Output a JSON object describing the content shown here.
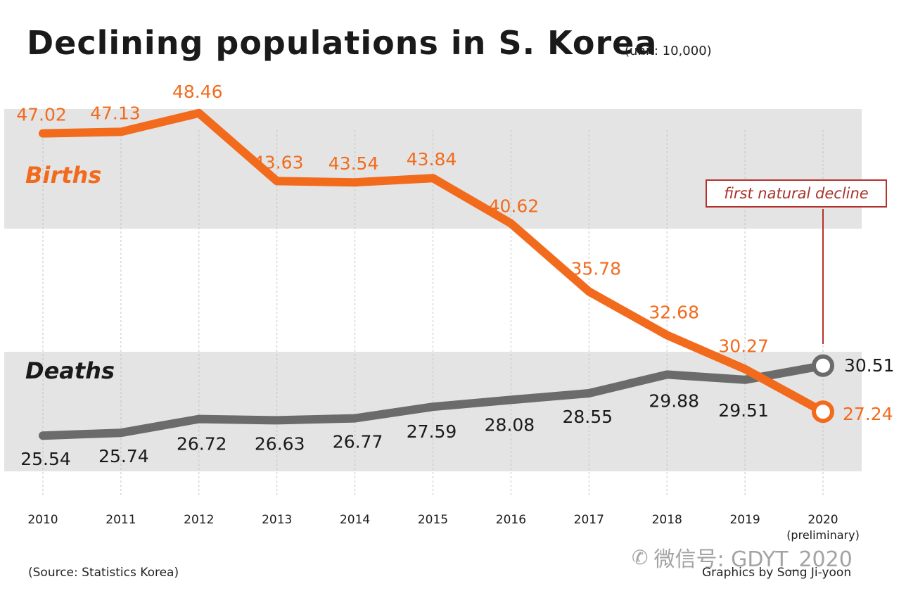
{
  "title": "Declining populations in S. Korea",
  "unit": "(unit: 10,000)",
  "source": "(Source: Statistics Korea)",
  "credit": "Graphics by Song Ji-yoon",
  "watermark": "微信号: GDYT_2020",
  "annotation": "first natural decline",
  "colors": {
    "births": "#f26b1d",
    "deaths": "#6b6b6b",
    "band": "#e4e4e4",
    "annotation": "#b5322c"
  },
  "chart_data": {
    "type": "line",
    "categories": [
      "2010",
      "2011",
      "2012",
      "2013",
      "2014",
      "2015",
      "2016",
      "2017",
      "2018",
      "2019",
      "2020"
    ],
    "category_sublabels": [
      "",
      "",
      "",
      "",
      "",
      "",
      "",
      "",
      "",
      "",
      "(preliminary)"
    ],
    "series": [
      {
        "name": "Births",
        "values": [
          47.02,
          47.13,
          48.46,
          43.63,
          43.54,
          43.84,
          40.62,
          35.78,
          32.68,
          30.27,
          27.24
        ]
      },
      {
        "name": "Deaths",
        "values": [
          25.54,
          25.74,
          26.72,
          26.63,
          26.77,
          27.59,
          28.08,
          28.55,
          29.88,
          29.51,
          30.51
        ]
      }
    ],
    "labels": {
      "births": [
        "47.02",
        "47.13",
        "48.46",
        "43.63",
        "43.54",
        "43.84",
        "40.62",
        "35.78",
        "32.68",
        "30.27",
        "27.24"
      ],
      "deaths": [
        "25.54",
        "25.74",
        "26.72",
        "26.63",
        "26.77",
        "27.59",
        "28.08",
        "28.55",
        "29.88",
        "29.51",
        "30.51"
      ]
    },
    "title": "Declining populations in S. Korea",
    "xlabel": "",
    "ylabel": "",
    "ylim": [
      22,
      51
    ],
    "grid": "vertical dashed",
    "legend": "inline labels"
  }
}
